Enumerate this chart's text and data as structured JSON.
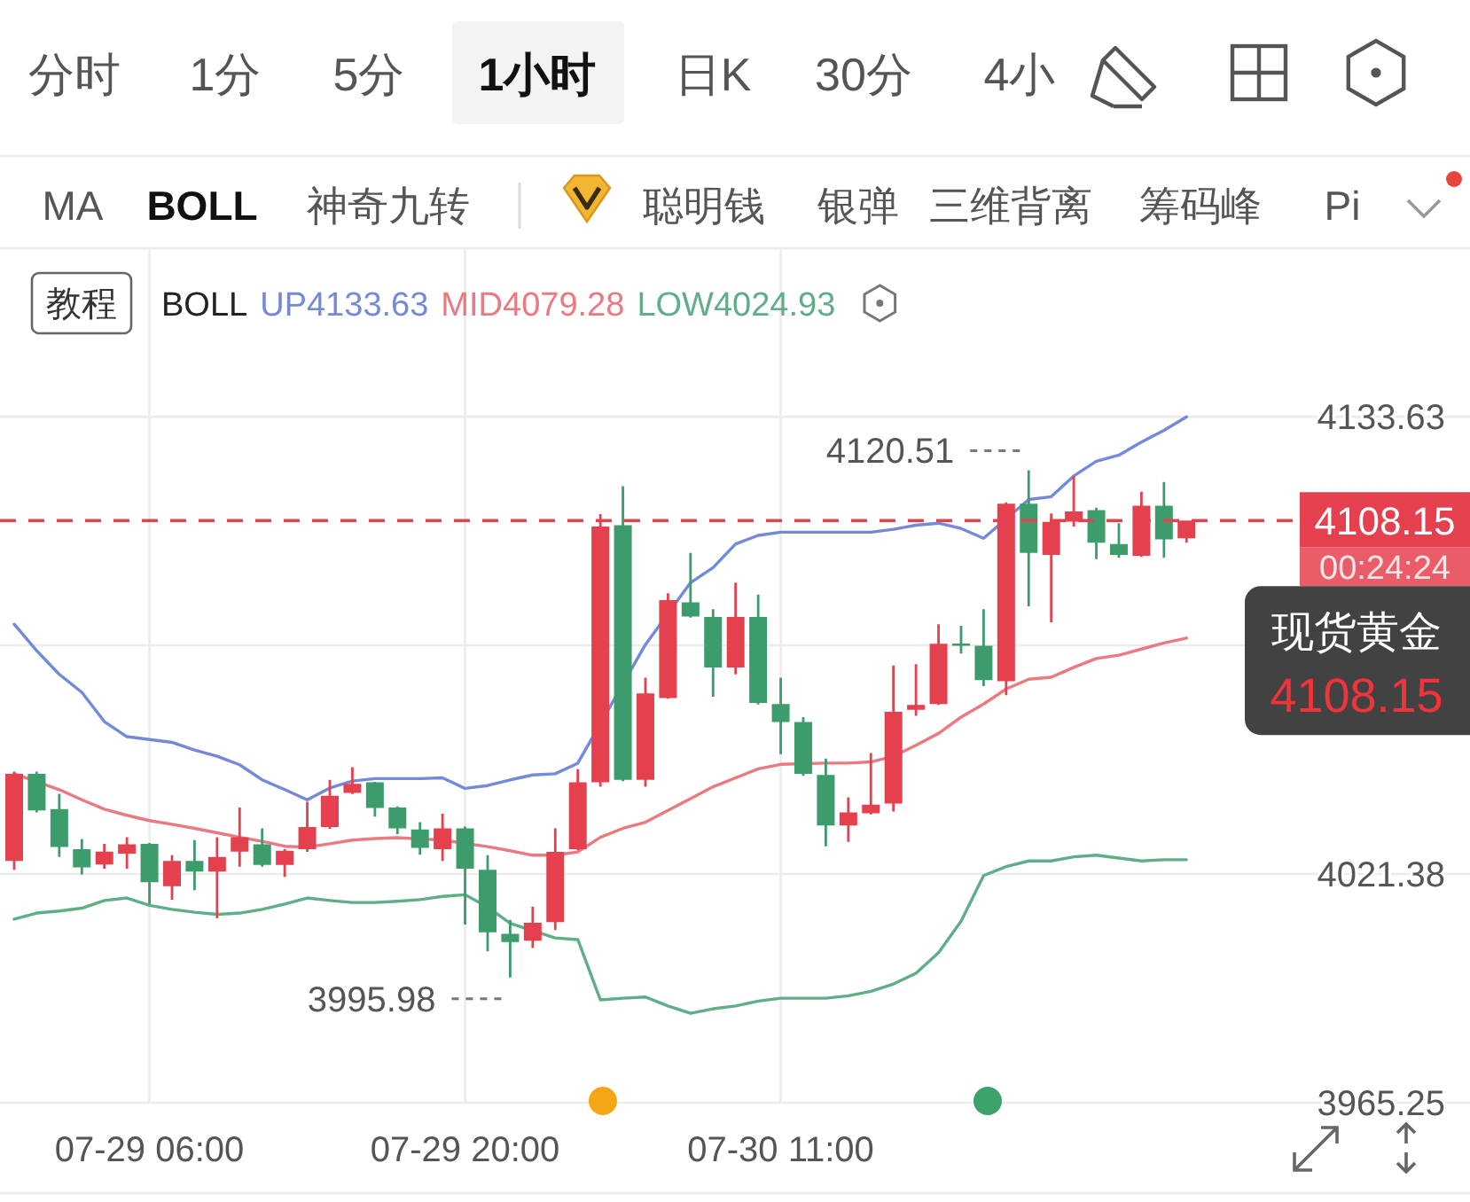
{
  "chart_data": {
    "type": "candlestick",
    "title": "现货黄金",
    "legend_title": "BOLL",
    "legend": "top left",
    "grid": true,
    "categories": [
      null,
      null,
      null,
      null,
      null,
      null,
      "07-29 06:00",
      null,
      null,
      null,
      null,
      null,
      null,
      null,
      null,
      null,
      null,
      null,
      null,
      null,
      "07-29 20:00",
      null,
      null,
      null,
      null,
      null,
      null,
      null,
      null,
      null,
      null,
      null,
      null,
      null,
      "07-30 11:00",
      null,
      null,
      null,
      null,
      null,
      null,
      null,
      null,
      null,
      null,
      null,
      null,
      null,
      null,
      null,
      null,
      null,
      null
    ],
    "ohlc": [
      [
        4024.6,
        4046.5,
        4022.4,
        4046.0
      ],
      [
        4046.0,
        4046.5,
        4036.5,
        4037.0
      ],
      [
        4037.3,
        4041.1,
        4025.6,
        4028.0
      ],
      [
        4027.5,
        4030.0,
        4021.3,
        4023.0
      ],
      [
        4023.7,
        4028.8,
        4022.7,
        4026.9
      ],
      [
        4026.4,
        4030.4,
        4022.7,
        4028.7
      ],
      [
        4028.8,
        4029.0,
        4014.0,
        4019.4
      ],
      [
        4018.4,
        4026.0,
        4015.1,
        4024.6
      ],
      [
        4024.6,
        4029.7,
        4017.4,
        4022.0
      ],
      [
        4022.0,
        4030.4,
        4010.5,
        4025.6
      ],
      [
        4026.9,
        4037.7,
        4023.2,
        4030.4
      ],
      [
        4028.7,
        4032.6,
        4023.2,
        4023.6
      ],
      [
        4023.6,
        4027.5,
        4020.7,
        4027.1
      ],
      [
        4027.5,
        4039.1,
        4026.8,
        4032.9
      ],
      [
        4032.9,
        4044.5,
        4032.5,
        4040.6
      ],
      [
        4041.3,
        4047.6,
        4041.0,
        4043.5
      ],
      [
        4043.9,
        4044.0,
        4035.5,
        4037.6
      ],
      [
        4037.7,
        4038.0,
        4031.2,
        4032.6
      ],
      [
        4032.3,
        4034.1,
        4026.1,
        4027.8
      ],
      [
        4027.5,
        4036.2,
        4024.6,
        4032.6
      ],
      [
        4032.6,
        4033.0,
        4009.0,
        4022.7
      ],
      [
        4022.4,
        4026.0,
        4002.4,
        4007.1
      ],
      [
        4006.7,
        4010.1,
        3995.98,
        4004.7
      ],
      [
        4005.0,
        4013.4,
        4003.2,
        4009.4
      ],
      [
        4009.6,
        4032.6,
        4007.6,
        4026.8
      ],
      [
        4027.5,
        4047.1,
        4027.2,
        4043.9
      ],
      [
        4043.9,
        4109.7,
        4042.8,
        4106.7
      ],
      [
        4107.0,
        4116.6,
        4044.2,
        4044.5
      ],
      [
        4044.5,
        4069.6,
        4042.8,
        4065.7
      ],
      [
        4064.6,
        4090.3,
        4064.4,
        4088.6
      ],
      [
        4088.1,
        4100.2,
        4084.3,
        4084.6
      ],
      [
        4084.5,
        4086.4,
        4064.9,
        4072.1
      ],
      [
        4072.1,
        4092.9,
        4070.4,
        4084.5
      ],
      [
        4084.5,
        4090.0,
        4063.0,
        4063.4
      ],
      [
        4063.1,
        4069.6,
        4050.8,
        4058.7
      ],
      [
        4058.7,
        4059.9,
        4045.5,
        4046.0
      ],
      [
        4045.7,
        4049.7,
        4028.2,
        4033.3
      ],
      [
        4033.3,
        4040.2,
        4029.3,
        4036.5
      ],
      [
        4036.3,
        4051.1,
        4036.0,
        4038.4
      ],
      [
        4038.7,
        4072.6,
        4036.7,
        4061.2
      ],
      [
        4061.7,
        4072.9,
        4060.2,
        4062.9
      ],
      [
        4063.1,
        4082.7,
        4062.9,
        4077.9
      ],
      [
        4077.9,
        4082.3,
        4075.5,
        4077.5
      ],
      [
        4077.4,
        4086.4,
        4067.5,
        4069.0
      ],
      [
        4068.7,
        4112.6,
        4065.3,
        4112.3
      ],
      [
        4112.3,
        4120.51,
        4087.1,
        4100.2
      ],
      [
        4099.7,
        4109.9,
        4083.2,
        4107.8
      ],
      [
        4107.9,
        4119.1,
        4106.7,
        4110.4
      ],
      [
        4110.7,
        4111.3,
        4098.7,
        4102.7
      ],
      [
        4102.4,
        4107.5,
        4099.0,
        4099.7
      ],
      [
        4099.5,
        4115.2,
        4099.2,
        4111.8
      ],
      [
        4111.8,
        4117.6,
        4099.0,
        4103.5
      ],
      [
        4103.8,
        4108.15,
        4102.7,
        4108.15
      ]
    ],
    "colors": [
      "#e5404e",
      "#3d9c6b",
      "#3d9c6b",
      "#3d9c6b",
      "#e5404e",
      "#e5404e",
      "#3d9c6b",
      "#e5404e",
      "#3d9c6b",
      "#e5404e",
      "#e5404e",
      "#3d9c6b",
      "#e5404e",
      "#e5404e",
      "#e5404e",
      "#e5404e",
      "#3d9c6b",
      "#3d9c6b",
      "#3d9c6b",
      "#e5404e",
      "#3d9c6b",
      "#3d9c6b",
      "#3d9c6b",
      "#e5404e",
      "#e5404e",
      "#e5404e",
      "#e5404e",
      "#3d9c6b",
      "#e5404e",
      "#e5404e",
      "#3d9c6b",
      "#3d9c6b",
      "#e5404e",
      "#3d9c6b",
      "#3d9c6b",
      "#3d9c6b",
      "#3d9c6b",
      "#e5404e",
      "#e5404e",
      "#e5404e",
      "#e5404e",
      "#e5404e",
      "#3d9c6b",
      "#3d9c6b",
      "#e5404e",
      "#3d9c6b",
      "#e5404e",
      "#e5404e",
      "#3d9c6b",
      "#3d9c6b",
      "#e5404e",
      "#3d9c6b",
      "#e5404e"
    ],
    "series": [
      {
        "name": "UP4133.63",
        "type": "line",
        "color": "#7489d8",
        "values": [
          4082.7,
          4076.2,
          4070.4,
          4066.0,
          4058.8,
          4055.1,
          4054.4,
          4053.7,
          4051.8,
          4050.3,
          4048.2,
          4044.5,
          4042.1,
          4039.6,
          4042.5,
          4044.2,
          4044.8,
          4044.8,
          4044.8,
          4045.0,
          4042.4,
          4043.1,
          4044.5,
          4045.7,
          4046.0,
          4048.6,
          null,
          null,
          4077.7,
          null,
          4092.9,
          4096.6,
          4102.4,
          4104.5,
          4105.3,
          4105.3,
          4105.3,
          4105.3,
          4105.3,
          4106.0,
          4107.0,
          4107.5,
          4106.2,
          4103.8,
          null,
          4113.3,
          4114.0,
          4119.1,
          4122.7,
          4124.2,
          4127.4,
          4130.3,
          4133.6
        ]
      },
      {
        "name": "MID4079.28",
        "type": "line",
        "color": "#ea7a80",
        "values": [
          4046.0,
          null,
          4042.1,
          4039.6,
          4037.3,
          4035.8,
          4034.5,
          4033.6,
          4032.6,
          4031.5,
          4030.4,
          4029.4,
          4028.2,
          4028.0,
          4028.8,
          4029.7,
          4030.1,
          4030.3,
          4030.0,
          4029.7,
          null,
          4028.1,
          4027.1,
          4026.0,
          4026.0,
          4026.8,
          4030.4,
          4032.6,
          4034.1,
          4037.0,
          4039.9,
          4042.8,
          4045.0,
          4047.2,
          4048.3,
          null,
          4048.6,
          4048.6,
          4048.9,
          4050.3,
          4053.0,
          4055.9,
          4059.9,
          4063.1,
          4066.8,
          4069.2,
          4069.7,
          4072.1,
          4074.3,
          4075.1,
          4076.6,
          4078.1,
          4079.3
        ]
      },
      {
        "name": "LOW4024.93",
        "type": "line",
        "color": "#5fae87",
        "values": [
          4010.3,
          4011.8,
          4012.3,
          4013.0,
          4014.9,
          4015.5,
          4013.7,
          4012.7,
          4012.0,
          4011.5,
          4011.8,
          4012.7,
          4014.0,
          4015.5,
          4014.9,
          4014.4,
          4014.4,
          4014.7,
          4015.1,
          4015.9,
          4016.3,
          4013.3,
          4009.3,
          null,
          4005.7,
          4005.3,
          3990.5,
          3990.9,
          3991.2,
          3989.0,
          3987.2,
          3988.3,
          3989.0,
          3990.2,
          3990.9,
          3990.9,
          3990.9,
          3991.5,
          3992.6,
          3994.4,
          3997.0,
          4002.1,
          4009.8,
          4021.0,
          4023.2,
          4024.6,
          4024.6,
          4025.6,
          4026.0,
          4025.3,
          4024.6,
          4024.9,
          4024.9
        ]
      }
    ],
    "ylim": [
      3965.25,
      4175
    ],
    "yticks": [
      3965.25,
      4021.38,
      {
        "value": 4077.51,
        "label": null
      },
      4108.15,
      4133.63
    ],
    "ref_lines": [
      {
        "axis": "y",
        "value": 4108.15,
        "color": "#e5404e",
        "line_style": "dashed"
      }
    ],
    "annotations": [
      "分时",
      "1分",
      "5分",
      "1小时",
      "日K",
      "30分",
      "4小",
      "MA",
      "BOLL",
      "神奇九转",
      "聪明钱",
      "银弹",
      "三维背离",
      "筹码峰",
      "Pi",
      "教程",
      "00:24:24",
      "4120.51",
      "3995.98",
      "4108.15"
    ]
  }
}
